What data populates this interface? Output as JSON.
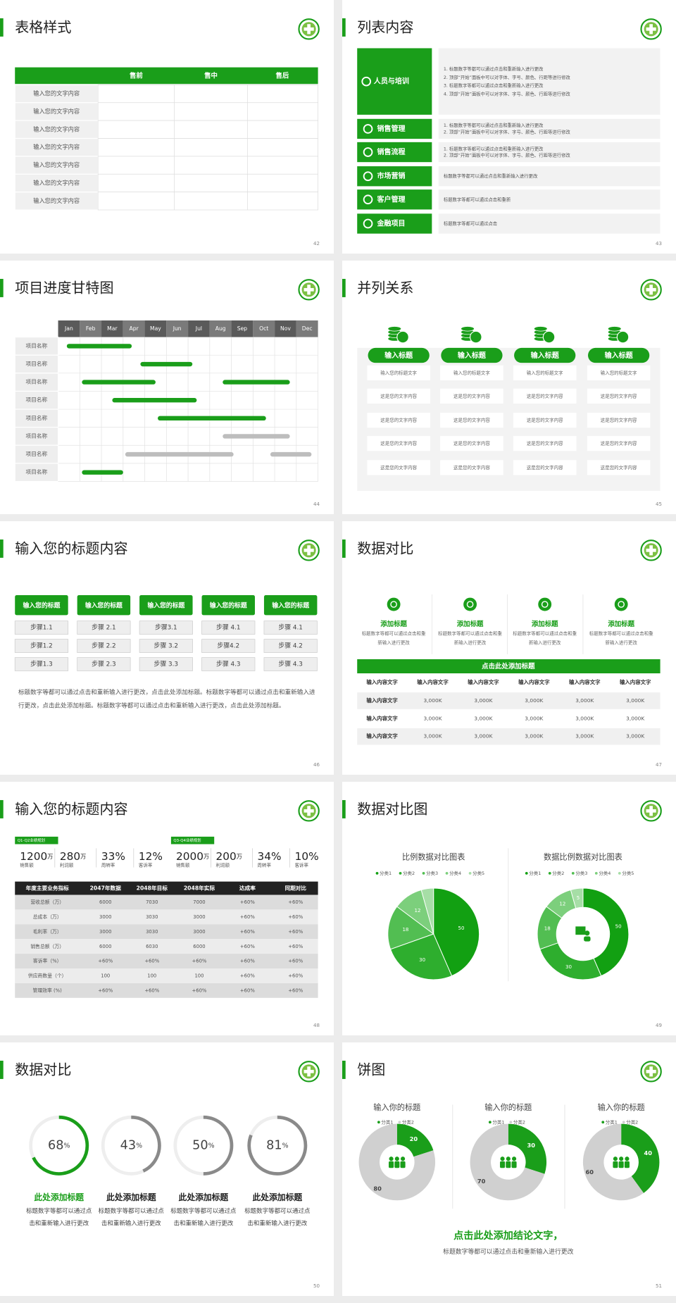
{
  "slides": [
    {
      "title": "表格样式",
      "page": "42",
      "grid": {
        "header": [
          "售前",
          "售中",
          "售后"
        ],
        "rows": [
          "输入您的文字内容",
          "输入您的文字内容",
          "输入您的文字内容",
          "输入您的文字内容",
          "输入您的文字内容",
          "输入您的文字内容",
          "输入您的文字内容"
        ]
      }
    },
    {
      "title": "列表内容",
      "page": "43",
      "items": [
        {
          "label": "人员与培训",
          "lines": [
            "1.  标题数字等都可以通过点击和重新输入进行更改",
            "2.  顶部“开始”面板中可以对字体、字号、颜色、行距等进行修改",
            "3.  标题数字等都可以通过点击和重新输入进行更改",
            "4.  顶部“开始”面板中可以对字体、字号、颜色、行距等进行修改"
          ]
        },
        {
          "label": "销售管理",
          "lines": [
            "1.  标题数字等都可以通过点击和重新输入进行更改",
            "2.  顶部“开始”面板中可以对字体、字号、颜色、行距等进行修改"
          ]
        },
        {
          "label": "销售流程",
          "lines": [
            "1.  标题数字等都可以通过点击和重新输入进行更改",
            "2.  顶部“开始”面板中可以对字体、字号、颜色、行距等进行修改"
          ]
        },
        {
          "label": "市场营销",
          "lines": [
            "标题数字等都可以通过点击和重新输入进行更改"
          ]
        },
        {
          "label": "客户管理",
          "lines": [
            "标题数字等都可以通过点击和重新"
          ]
        },
        {
          "label": "金融项目",
          "lines": [
            "标题数字等都可以通过点击"
          ]
        }
      ]
    },
    {
      "title": "项目进度甘特图",
      "page": "44",
      "months": [
        "Jan",
        "Feb",
        "Mar",
        "Apr",
        "May",
        "Jun",
        "Jul",
        "Aug",
        "Sep",
        "Oct",
        "Nov",
        "Dec"
      ],
      "tasks": [
        {
          "label": "项目名称",
          "bars": [
            {
              "start": 0.4,
              "end": 3.4,
              "color": "#1a9e1a"
            }
          ]
        },
        {
          "label": "项目名称",
          "bars": [
            {
              "start": 3.8,
              "end": 6.2,
              "color": "#1a9e1a"
            }
          ]
        },
        {
          "label": "项目名称",
          "bars": [
            {
              "start": 1.1,
              "end": 4.5,
              "color": "#1a9e1a"
            },
            {
              "start": 7.6,
              "end": 10.7,
              "color": "#1a9e1a"
            }
          ]
        },
        {
          "label": "项目名称",
          "bars": [
            {
              "start": 2.5,
              "end": 6.4,
              "color": "#1a9e1a"
            }
          ]
        },
        {
          "label": "项目名称",
          "bars": [
            {
              "start": 4.6,
              "end": 9.6,
              "color": "#1a9e1a"
            }
          ]
        },
        {
          "label": "项目名称",
          "bars": [
            {
              "start": 7.6,
              "end": 10.7,
              "color": "#bdbdbd"
            }
          ]
        },
        {
          "label": "项目名称",
          "bars": [
            {
              "start": 3.1,
              "end": 8.1,
              "color": "#bdbdbd"
            },
            {
              "start": 9.8,
              "end": 11.7,
              "color": "#bdbdbd"
            }
          ]
        },
        {
          "label": "项目名称",
          "bars": [
            {
              "start": 1.1,
              "end": 3.0,
              "color": "#1a9e1a"
            }
          ]
        }
      ]
    },
    {
      "title": "并列关系",
      "page": "45",
      "columns": [
        {
          "heading": "输入标题",
          "rows": [
            "输入您的标题文字",
            "这是您的文字内容",
            "这是您的文字内容",
            "这是您的文字内容",
            "这是您的文字内容"
          ]
        },
        {
          "heading": "输入标题",
          "rows": [
            "输入您的标题文字",
            "这是您的文字内容",
            "这是您的文字内容",
            "这是您的文字内容",
            "这是您的文字内容"
          ]
        },
        {
          "heading": "输入标题",
          "rows": [
            "输入您的标题文字",
            "这是您的文字内容",
            "这是您的文字内容",
            "这是您的文字内容",
            "这是您的文字内容"
          ]
        },
        {
          "heading": "输入标题",
          "rows": [
            "输入您的标题文字",
            "这是您的文字内容",
            "这是您的文字内容",
            "这是您的文字内容",
            "这是您的文字内容"
          ]
        }
      ]
    },
    {
      "title": "输入您的标题内容",
      "page": "46",
      "columns": [
        {
          "heading": "输入您的标题",
          "steps": [
            "步骤1.1",
            "步骤1.2",
            "步骤1.3"
          ]
        },
        {
          "heading": "输入您的标题",
          "steps": [
            "步骤 2.1",
            "步骤 2.2",
            "步骤 2.3"
          ]
        },
        {
          "heading": "输入您的标题",
          "steps": [
            "步骤3.1",
            "步骤 3.2",
            "步骤 3.3"
          ]
        },
        {
          "heading": "输入您的标题",
          "steps": [
            "步骤 4.1",
            "步骤4.2",
            "步骤 4.3"
          ]
        },
        {
          "heading": "输入您的标题",
          "steps": [
            "步骤 4.1",
            "步骤 4.2",
            "步骤 4.3"
          ]
        }
      ],
      "paragraph": "标题数字等都可以通过点击和重新输入进行更改，点击此处添加标题。标题数字等都可以通过点击和重新输入进行更改，点击此处添加标题。标题数字等都可以通过点击和重新输入进行更改，点击此处添加标题。"
    },
    {
      "title": "数据对比",
      "page": "47",
      "features": [
        {
          "heading": "添加标题",
          "text": "标题数字等都可以通过点击和重新输入进行更改"
        },
        {
          "heading": "添加标题",
          "text": "标题数字等都可以通过点击和重新输入进行更改"
        },
        {
          "heading": "添加标题",
          "text": "标题数字等都可以通过点击和重新输入进行更改"
        },
        {
          "heading": "添加标题",
          "text": "标题数字等都可以通过点击和重新输入进行更改"
        }
      ],
      "table": {
        "caption": "点击此处添加标题",
        "header": [
          "输入内容文字",
          "输入内容文字",
          "输入内容文字",
          "输入内容文字",
          "输入内容文字",
          "输入内容文字"
        ],
        "rows": [
          [
            "输入内容文字",
            "3,000K",
            "3,000K",
            "3,000K",
            "3,000K",
            "3,000K"
          ],
          [
            "输入内容文字",
            "3,000K",
            "3,000K",
            "3,000K",
            "3,000K",
            "3,000K"
          ],
          [
            "输入内容文字",
            "3,000K",
            "3,000K",
            "3,000K",
            "3,000K",
            "3,000K"
          ]
        ]
      }
    },
    {
      "title": "输入您的标题内容",
      "page": "48",
      "groups": [
        {
          "tag": "Q1-Q2业绩规划",
          "stats": [
            {
              "value": "1200",
              "unit": "万",
              "label": "销售额"
            },
            {
              "value": "280",
              "unit": "万",
              "label": "利润额"
            },
            {
              "value": "33%",
              "label": "周转率"
            },
            {
              "value": "12%",
              "label": "客诉率"
            }
          ]
        },
        {
          "tag": "Q3-Q4业绩规划",
          "stats": [
            {
              "value": "2000",
              "unit": "万",
              "label": "销售额"
            },
            {
              "value": "200",
              "unit": "万",
              "label": "利润额"
            },
            {
              "value": "34%",
              "label": "周转率"
            },
            {
              "value": "10%",
              "label": "客诉率"
            }
          ]
        }
      ],
      "table": {
        "header": [
          "年度主要业务指标",
          "2047年数据",
          "2048年目标",
          "2048年实际",
          "达成率",
          "同期对比"
        ],
        "rows": [
          [
            "营收总额（万）",
            "6000",
            "7030",
            "7000",
            "+60%",
            "+60%"
          ],
          [
            "总成本（万）",
            "3000",
            "3030",
            "3000",
            "+60%",
            "+60%"
          ],
          [
            "毛利率（万）",
            "3000",
            "3030",
            "3000",
            "+60%",
            "+60%"
          ],
          [
            "销售总额（万）",
            "6000",
            "6030",
            "6000",
            "+60%",
            "+60%"
          ],
          [
            "客诉率（%）",
            "+60%",
            "+60%",
            "+60%",
            "+60%",
            "+60%"
          ],
          [
            "供应商数量（个）",
            "100",
            "100",
            "100",
            "+60%",
            "+60%"
          ],
          [
            "管理效率 (%)",
            "+60%",
            "+60%",
            "+60%",
            "+60%",
            "+60%"
          ]
        ]
      }
    },
    {
      "title": "数据对比图",
      "page": "49",
      "charts": [
        {
          "type": "pie",
          "title": "比例数据对比图表",
          "legend": [
            "分类1",
            "分类2",
            "分类3",
            "分类4",
            "分类5"
          ],
          "values": [
            50,
            30,
            18,
            12,
            5
          ],
          "colors": [
            "#12a012",
            "#2eae2e",
            "#52be52",
            "#7ccf7c",
            "#a6dea6"
          ]
        },
        {
          "type": "donut",
          "title": "数据比例数据对比图表",
          "legend": [
            "分类1",
            "分类2",
            "分类3",
            "分类4",
            "分类5"
          ],
          "values": [
            50,
            30,
            18,
            12,
            5
          ],
          "colors": [
            "#12a012",
            "#2eae2e",
            "#52be52",
            "#7ccf7c",
            "#a6dea6"
          ]
        }
      ]
    },
    {
      "title": "数据对比",
      "page": "50",
      "rings": [
        {
          "value": 68,
          "unit": "%",
          "color": "#1a9e1a",
          "heading_color": "#1a9e1a",
          "heading": "此处添加标题",
          "text": "标题数字等都可以通过点击和重新输入进行更改"
        },
        {
          "value": 43,
          "unit": "%",
          "color": "#8a8a8a",
          "heading_color": "#222222",
          "heading": "此处添加标题",
          "text": "标题数字等都可以通过点击和重新输入进行更改"
        },
        {
          "value": 50,
          "unit": "%",
          "color": "#8a8a8a",
          "heading_color": "#222222",
          "heading": "此处添加标题",
          "text": "标题数字等都可以通过点击和重新输入进行更改"
        },
        {
          "value": 81,
          "unit": "%",
          "color": "#8a8a8a",
          "heading_color": "#222222",
          "heading": "此处添加标题",
          "text": "标题数字等都可以通过点击和重新输入进行更改"
        }
      ]
    },
    {
      "title": "饼图",
      "page": "51",
      "donuts": [
        {
          "title": "输入你的标题",
          "legend": [
            "分类1",
            "分类2"
          ],
          "values": [
            20,
            80
          ],
          "colors": [
            "#1a9e1a",
            "#d0d0d0"
          ]
        },
        {
          "title": "输入你的标题",
          "legend": [
            "分类1",
            "分类2"
          ],
          "values": [
            30,
            70
          ],
          "colors": [
            "#1a9e1a",
            "#d0d0d0"
          ]
        },
        {
          "title": "输入你的标题",
          "legend": [
            "分类1",
            "分类2"
          ],
          "values": [
            40,
            60
          ],
          "colors": [
            "#1a9e1a",
            "#d0d0d0"
          ]
        }
      ],
      "conclusion": "点击此处添加结论文字，",
      "sub": "标题数字等都可以通过点击和重新输入进行更改"
    }
  ]
}
